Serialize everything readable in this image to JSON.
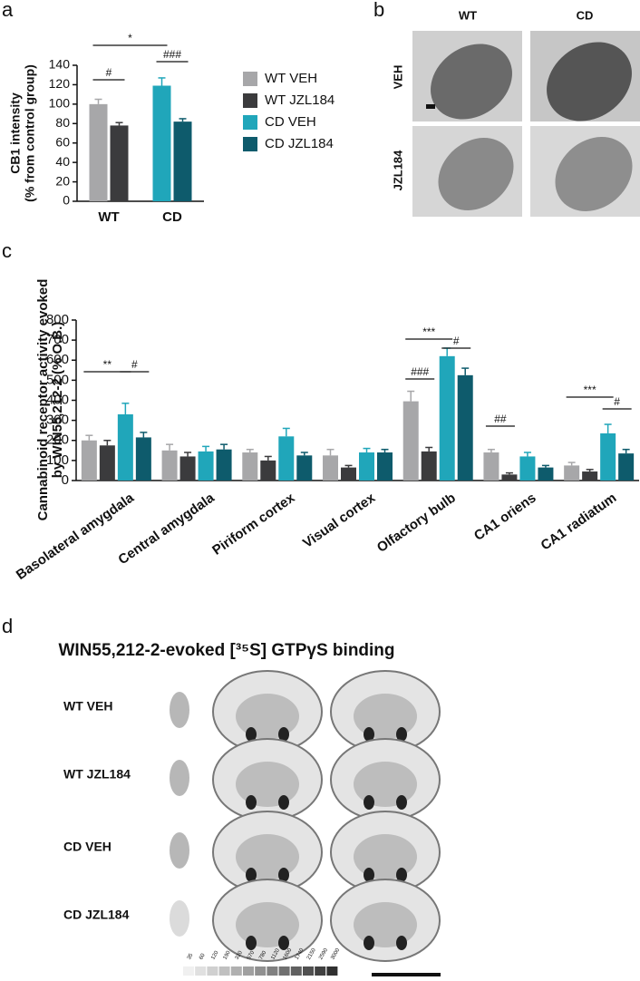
{
  "panels": {
    "labels": [
      "a",
      "b",
      "c",
      "d"
    ]
  },
  "micrographs": {
    "columns": [
      "WT",
      "CD"
    ],
    "rows": [
      "VEH",
      "JZL184"
    ]
  },
  "binding": {
    "title": "WIN55,212-2-evoked [³⁵S] GTPγS binding",
    "rows": [
      "WT VEH",
      "WT JZL184",
      "CD VEH",
      "CD JZL184"
    ],
    "calibration": [
      "35",
      "60",
      "120",
      "190",
      "320",
      "570",
      "780",
      "1120",
      "1600",
      "1740",
      "2150",
      "2590",
      "3000"
    ]
  },
  "chart_data": [
    {
      "type": "bar",
      "ylabel": [
        "CB1 intensity",
        "(% from control group)"
      ],
      "categories": [
        "WT",
        "CD"
      ],
      "series": [
        {
          "name": "WT VEH",
          "color": "#a7a7a9",
          "values": [
            100,
            null
          ],
          "errors": [
            5,
            null
          ]
        },
        {
          "name": "WT JZL184",
          "color": "#3b3b3d",
          "values": [
            78,
            null
          ],
          "errors": [
            3,
            null
          ]
        },
        {
          "name": "CD VEH",
          "color": "#20a6ba",
          "values": [
            null,
            119
          ],
          "errors": [
            null,
            8
          ]
        },
        {
          "name": "CD JZL184",
          "color": "#0e5b6c",
          "values": [
            null,
            82
          ],
          "errors": [
            null,
            3
          ]
        }
      ],
      "ylim": [
        0,
        140
      ],
      "yticks": [
        0,
        20,
        40,
        60,
        80,
        100,
        120,
        140
      ],
      "legend": true,
      "annotations": [
        "*",
        "#",
        "###"
      ]
    },
    {
      "type": "bar",
      "ylabel": [
        "Cannabinoid receptor activity evoked",
        "by WIN55,212-2 (% O.B.)"
      ],
      "categories": [
        "Basolateral amygdala",
        "Central amygdala",
        "Piriform cortex",
        "Visual cortex",
        "Olfactory bulb",
        "CA1 oriens",
        "CA1 radiatum"
      ],
      "series": [
        {
          "name": "WT VEH",
          "color": "#a7a7a9",
          "values": [
            200,
            150,
            140,
            125,
            395,
            140,
            75
          ],
          "errors": [
            25,
            30,
            15,
            30,
            50,
            15,
            15
          ]
        },
        {
          "name": "WT JZL184",
          "color": "#3b3b3d",
          "values": [
            175,
            120,
            100,
            65,
            145,
            30,
            45
          ],
          "errors": [
            25,
            20,
            20,
            10,
            20,
            8,
            10
          ]
        },
        {
          "name": "CD VEH",
          "color": "#20a6ba",
          "values": [
            330,
            145,
            220,
            140,
            620,
            120,
            235
          ],
          "errors": [
            55,
            25,
            40,
            20,
            40,
            20,
            45
          ]
        },
        {
          "name": "CD JZL184",
          "color": "#0e5b6c",
          "values": [
            215,
            155,
            125,
            140,
            525,
            65,
            135
          ],
          "errors": [
            25,
            25,
            15,
            15,
            35,
            10,
            20
          ]
        }
      ],
      "ylim": [
        0,
        800
      ],
      "yticks": [
        0,
        100,
        200,
        300,
        400,
        500,
        600,
        700,
        800
      ],
      "legend": false,
      "annotations": [
        "**",
        "#",
        "***",
        "#",
        "###",
        "##",
        "***",
        "#"
      ]
    }
  ]
}
